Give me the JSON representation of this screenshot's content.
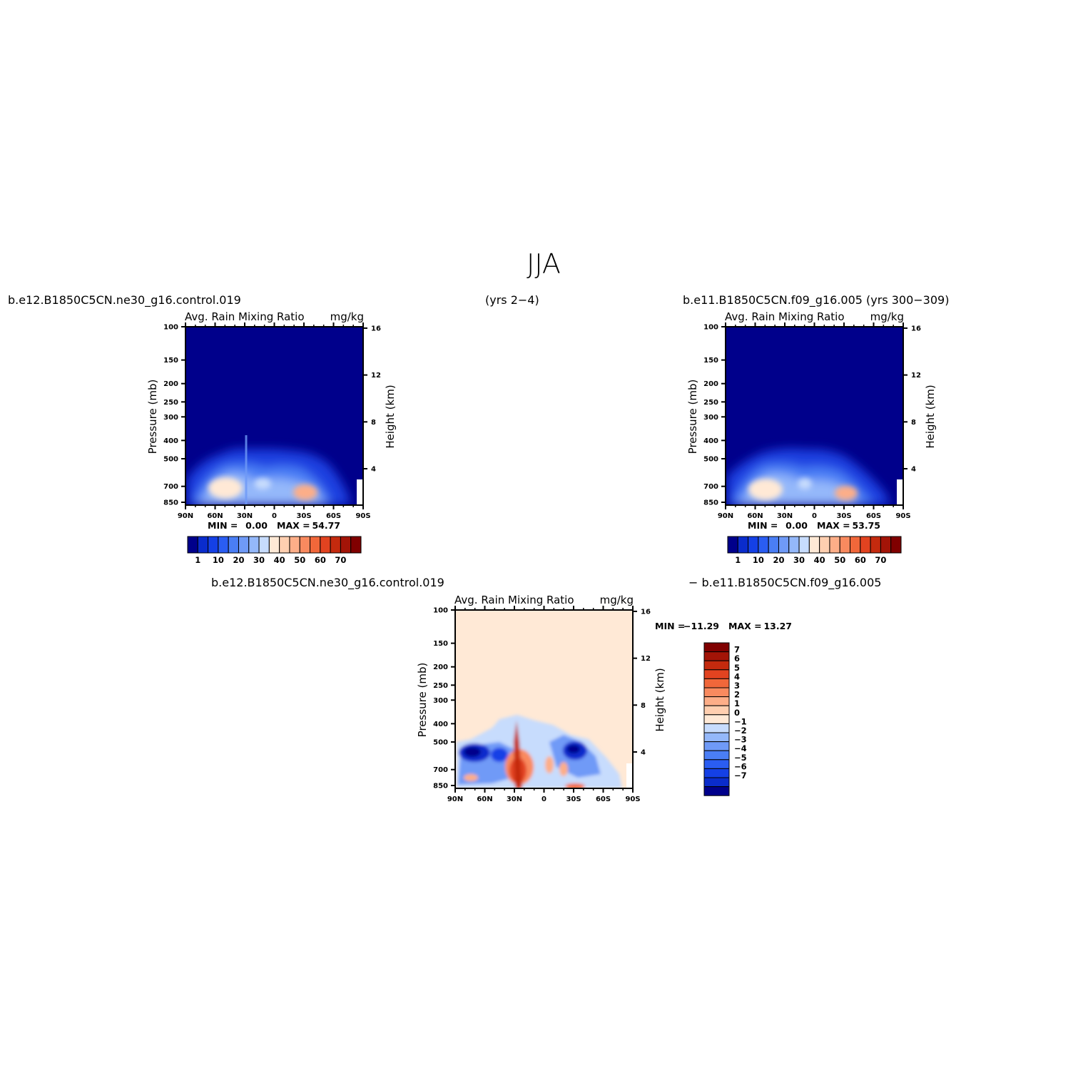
{
  "figure": {
    "title": "JJA",
    "case_top_left": "b.e12.B1850C5CN.ne30_g16.control.019",
    "years_top_left": "(yrs 2−4)",
    "case_top_right": "b.e11.B1850C5CN.f09_g16.005 (yrs 300−309)",
    "diff_left": "b.e12.B1850C5CN.ne30_g16.control.019",
    "diff_right": "− b.e11.B1850C5CN.f09_g16.005"
  },
  "chart_data": [
    {
      "type": "heatmap",
      "panel": "top-left",
      "variable": "Avg. Rain Mixing Ratio",
      "units": "mg/kg",
      "ylabel": "Pressure (mb)",
      "ylabel_right": "Height (km)",
      "x_ticks": [
        "90N",
        "60N",
        "30N",
        "0",
        "30S",
        "60S",
        "90S"
      ],
      "x_range": [
        90,
        -90
      ],
      "y_ticks": [
        100,
        150,
        200,
        250,
        300,
        400,
        500,
        700,
        850
      ],
      "y_range": [
        100,
        1000
      ],
      "y_scale": "log",
      "height_ticks": [
        16,
        12,
        8,
        4
      ],
      "min_label": "MIN =",
      "min_value": "0.00",
      "max_label": "MAX =",
      "max_value": "54.77",
      "colorbar_levels": [
        "1",
        "10",
        "20",
        "30",
        "40",
        "50",
        "60",
        "70"
      ],
      "colorbar_colors": [
        "#00008b",
        "#0a2ccc",
        "#1440e6",
        "#2a5df2",
        "#4a7ef5",
        "#6f9af7",
        "#94b8fa",
        "#c7dcfd",
        "#ffe9d6",
        "#ffcfb0",
        "#fdae88",
        "#f98a5f",
        "#f1673a",
        "#e24320",
        "#c42a0e",
        "#a31407",
        "#800000"
      ],
      "features": [
        {
          "lat": 45,
          "p": 760,
          "value": 50
        },
        {
          "lat": 5,
          "p": 700,
          "value": 36
        },
        {
          "lat": -32,
          "p": 790,
          "value": 54.77
        }
      ]
    },
    {
      "type": "heatmap",
      "panel": "top-right",
      "variable": "Avg. Rain Mixing Ratio",
      "units": "mg/kg",
      "ylabel": "Pressure (mb)",
      "ylabel_right": "Height (km)",
      "x_ticks": [
        "90N",
        "60N",
        "30N",
        "0",
        "30S",
        "60S",
        "90S"
      ],
      "x_range": [
        90,
        -90
      ],
      "y_ticks": [
        100,
        150,
        200,
        250,
        300,
        400,
        500,
        700,
        850
      ],
      "y_range": [
        100,
        1000
      ],
      "y_scale": "log",
      "height_ticks": [
        16,
        12,
        8,
        4
      ],
      "min_label": "MIN =",
      "min_value": "0.00",
      "max_label": "MAX =",
      "max_value": "53.75",
      "colorbar_levels": [
        "1",
        "10",
        "20",
        "30",
        "40",
        "50",
        "60",
        "70"
      ],
      "colorbar_colors": [
        "#00008b",
        "#0a2ccc",
        "#1440e6",
        "#2a5df2",
        "#4a7ef5",
        "#6f9af7",
        "#94b8fa",
        "#c7dcfd",
        "#ffe9d6",
        "#ffcfb0",
        "#fdae88",
        "#f98a5f",
        "#f1673a",
        "#e24320",
        "#c42a0e",
        "#a31407",
        "#800000"
      ],
      "features": [
        {
          "lat": 45,
          "p": 760,
          "value": 48
        },
        {
          "lat": 0,
          "p": 700,
          "value": 32
        },
        {
          "lat": -32,
          "p": 790,
          "value": 53.75
        }
      ]
    },
    {
      "type": "heatmap",
      "panel": "bottom-difference",
      "variable": "Avg. Rain Mixing Ratio",
      "units": "mg/kg",
      "ylabel": "Pressure (mb)",
      "ylabel_right": "Height (km)",
      "x_ticks": [
        "90N",
        "60N",
        "30N",
        "0",
        "30S",
        "60S",
        "90S"
      ],
      "x_range": [
        90,
        -90
      ],
      "y_ticks": [
        100,
        150,
        200,
        250,
        300,
        400,
        500,
        700,
        850
      ],
      "y_range": [
        100,
        1000
      ],
      "y_scale": "log",
      "height_ticks": [
        16,
        12,
        8,
        4
      ],
      "min_label": "MIN =",
      "min_value": "−11.29",
      "max_label": "MAX =",
      "max_value": "13.27",
      "colorbar_levels": [
        "7",
        "6",
        "5",
        "4",
        "3",
        "2",
        "1",
        "0",
        "−1",
        "−2",
        "−3",
        "−4",
        "−5",
        "−6",
        "−7"
      ],
      "colorbar_colors": [
        "#800000",
        "#a31407",
        "#c42a0e",
        "#e24320",
        "#f1673a",
        "#f98a5f",
        "#fdae88",
        "#ffcfb0",
        "#ffe9d6",
        "#c7dcfd",
        "#94b8fa",
        "#6f9af7",
        "#4a7ef5",
        "#2a5df2",
        "#1440e6",
        "#0a2ccc",
        "#00008b"
      ],
      "features": [
        {
          "lat": 62,
          "p": 600,
          "value": -11.29
        },
        {
          "lat": 28,
          "p": 760,
          "value": 13.27
        },
        {
          "lat": -25,
          "p": 600,
          "value": -8
        }
      ]
    }
  ]
}
